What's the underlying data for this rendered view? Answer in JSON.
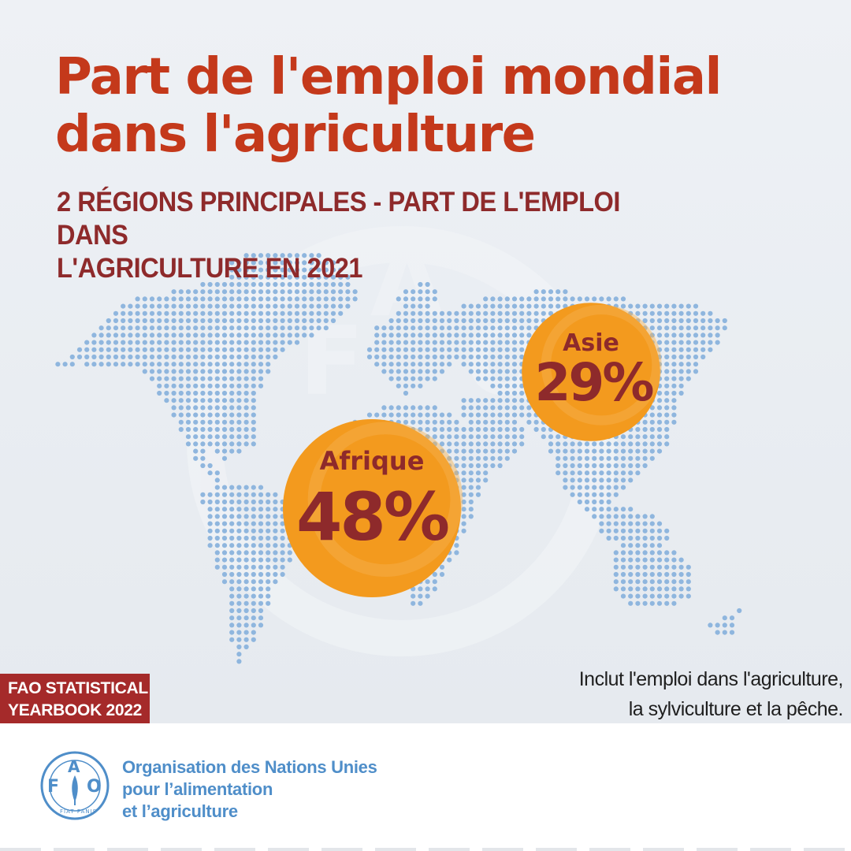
{
  "title_line1": "Part de l'emploi mondial",
  "title_line2": "dans l'agriculture",
  "subtitle_line1": "2 RÉGIONS PRINCIPALES - PART DE L'EMPLOI DANS",
  "subtitle_line2": "L'AGRICULTURE EN 2021",
  "badge_line1": "FAO STATISTICAL",
  "badge_line2": "YEARBOOK 2022",
  "note_line1": "Inclut l'emploi dans l'agriculture,",
  "note_line2": "la sylviculture et la pêche.",
  "org": {
    "line1": "Organisation des Nations Unies",
    "line2": "pour l’alimentation",
    "line3": "et l’agriculture",
    "logo_letters": {
      "f": "F",
      "a": "A",
      "o": "O"
    },
    "logo_motto": "FIAT PANIS"
  },
  "colors": {
    "title": "#c4391b",
    "subtitle": "#8e2a2b",
    "bubble": "#f39a1e",
    "badge": "#a52a2a",
    "map_dots": "#8fb6de",
    "org_blue": "#4f8ec9"
  },
  "chart_data": {
    "type": "bubble-map",
    "unit": "%",
    "regions": [
      {
        "name": "Afrique",
        "value": 48,
        "label": "48%"
      },
      {
        "name": "Asie",
        "value": 29,
        "label": "29%"
      }
    ]
  }
}
